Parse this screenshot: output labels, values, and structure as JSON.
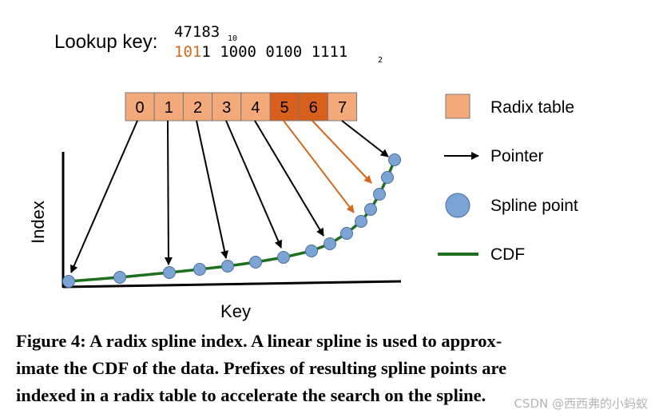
{
  "figure": {
    "lookup_label": "Lookup key:",
    "key_decimal": "47183",
    "key_decimal_base": "10",
    "key_binary_prefix": "101",
    "key_binary_rest": "1 1000 0100 1111",
    "key_binary_base": "2",
    "radix_cells": [
      "0",
      "1",
      "2",
      "3",
      "4",
      "5",
      "6",
      "7"
    ],
    "highlighted_cells": [
      5,
      6
    ],
    "axis_x_label": "Key",
    "axis_y_label": "Index"
  },
  "legend": {
    "radix_table": "Radix table",
    "pointer": "Pointer",
    "spline_point": "Spline point",
    "cdf": "CDF"
  },
  "caption": {
    "line1": "Figure 4: A radix spline index. A linear spline is used to approx-",
    "line2": "imate the CDF of the data. Prefixes of resulting spline points are",
    "line3": "indexed in a radix table to accelerate the search on the spline."
  },
  "watermark": "CSDN @西西弗的小蚂蚁",
  "colors": {
    "cell_fill": "#f4a97b",
    "cell_highlight": "#d9601c",
    "orange_arrow": "#d2691e",
    "spline_point": "#7ba3d4",
    "cdf_line": "#1f6f1f",
    "highlight_text": "#d2691e"
  }
}
